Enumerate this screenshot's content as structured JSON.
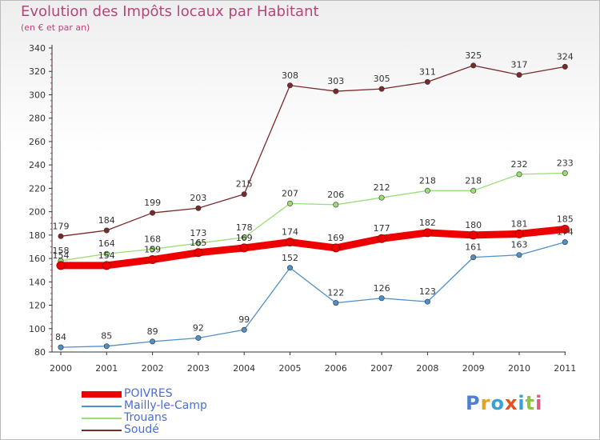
{
  "header": {
    "title": "Evolution des Impôts locaux par Habitant",
    "subtitle": "(en € et par an)"
  },
  "brand": {
    "name": "Proxiti"
  },
  "chart_data": {
    "type": "line",
    "x": [
      "2000",
      "2001",
      "2002",
      "2003",
      "2004",
      "2005",
      "2006",
      "2007",
      "2008",
      "2009",
      "2010",
      "2011"
    ],
    "ylim": [
      80,
      340
    ],
    "yticks": [
      80,
      100,
      120,
      140,
      160,
      180,
      200,
      220,
      240,
      260,
      280,
      300,
      320,
      340
    ],
    "grid": false,
    "legend_position": "bottom-left",
    "series": [
      {
        "name": "POIVRES",
        "color": "#ee0000",
        "values": [
          154,
          154,
          159,
          165,
          169,
          174,
          169,
          177,
          182,
          180,
          181,
          185
        ]
      },
      {
        "name": "Mailly-le-Camp",
        "color": "#4f90c9",
        "values": [
          84,
          85,
          89,
          92,
          99,
          152,
          122,
          126,
          123,
          161,
          163,
          174
        ]
      },
      {
        "name": "Trouans",
        "color": "#99dd77",
        "values": [
          158,
          164,
          168,
          173,
          178,
          207,
          206,
          212,
          218,
          218,
          232,
          233
        ]
      },
      {
        "name": "Soudé",
        "color": "#7a2a2a",
        "values": [
          179,
          184,
          199,
          203,
          215,
          308,
          303,
          305,
          311,
          325,
          317,
          324
        ]
      }
    ]
  }
}
